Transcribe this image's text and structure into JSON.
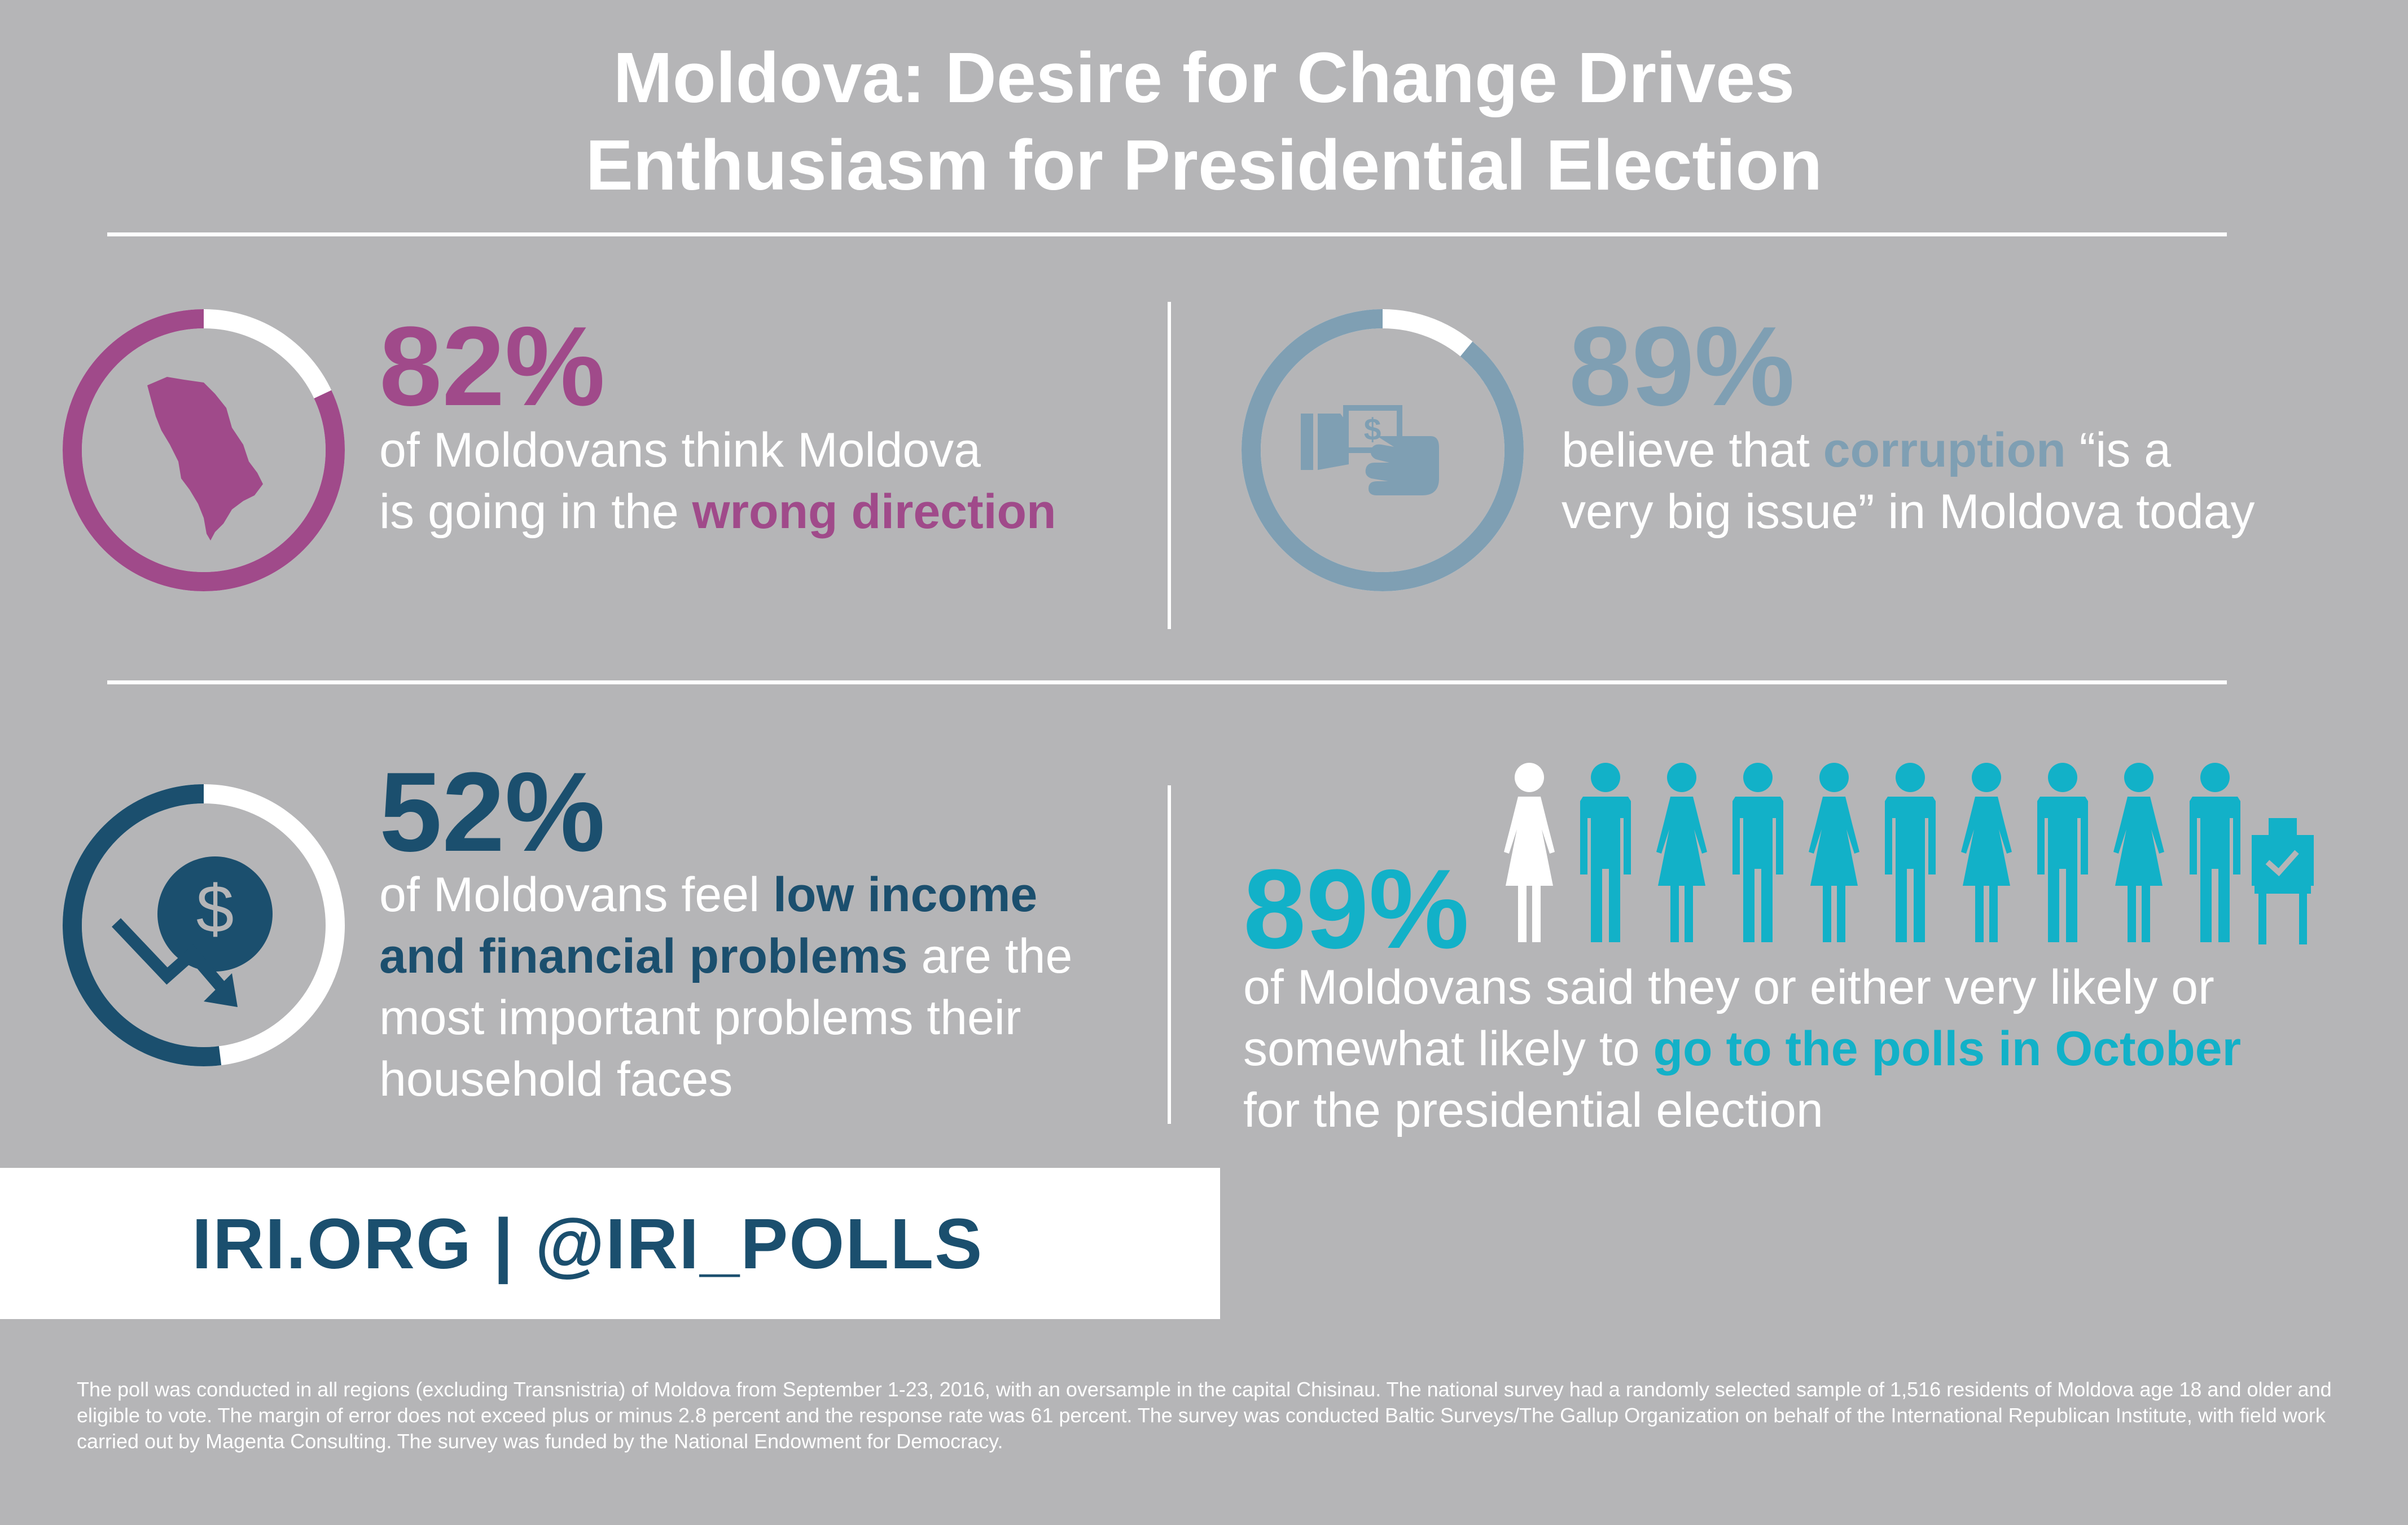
{
  "title": {
    "line1": "Moldova: Desire for Change Drives",
    "line2": "Enthusiasm for Presidential Election"
  },
  "stats": [
    {
      "value": "82%",
      "fraction": 0.82,
      "color": "#a04a8a",
      "icon": "moldova-map-icon",
      "text": [
        "of Moldovans think Moldova",
        "is going in the ",
        "wrong direction"
      ]
    },
    {
      "value": "89%",
      "fraction": 0.89,
      "color": "#7f9fb3",
      "icon": "bribe-hand-money-icon",
      "text": [
        "believe that ",
        "corruption",
        " “is a",
        "very big issue” in Moldova today"
      ]
    },
    {
      "value": "52%",
      "fraction": 0.52,
      "color": "#1b4f6e",
      "icon": "falling-dollar-icon",
      "text": [
        "of Moldovans feel ",
        "low income",
        "and financial problems",
        " are the",
        "most important problems their",
        "household faces"
      ]
    },
    {
      "value": "89%",
      "fraction": 0.89,
      "color": "#12b1c8",
      "icon": "people-voting-icon",
      "text": [
        "of Moldovans said they or either very likely or",
        "somewhat likely to ",
        "go to the polls in October",
        "for the presidential election"
      ]
    }
  ],
  "footer": {
    "links": "IRI.ORG  |  @IRI_POLLS"
  },
  "note": "The poll was conducted in all regions (excluding Transnistria) of Moldova from September 1-23, 2016, with an oversample in the capital Chisinau. The national survey had a randomly selected sample of 1,516 residents of Moldova age 18 and older and eligible to vote. The margin of error does not exceed plus or minus 2.8 percent and the response rate was 61 percent. The survey was conducted Baltic Surveys/The Gallup Organization on behalf of the International Republican Institute, with field work carried out by Magenta Consulting. The survey was funded by the National Endowment for Democracy."
}
